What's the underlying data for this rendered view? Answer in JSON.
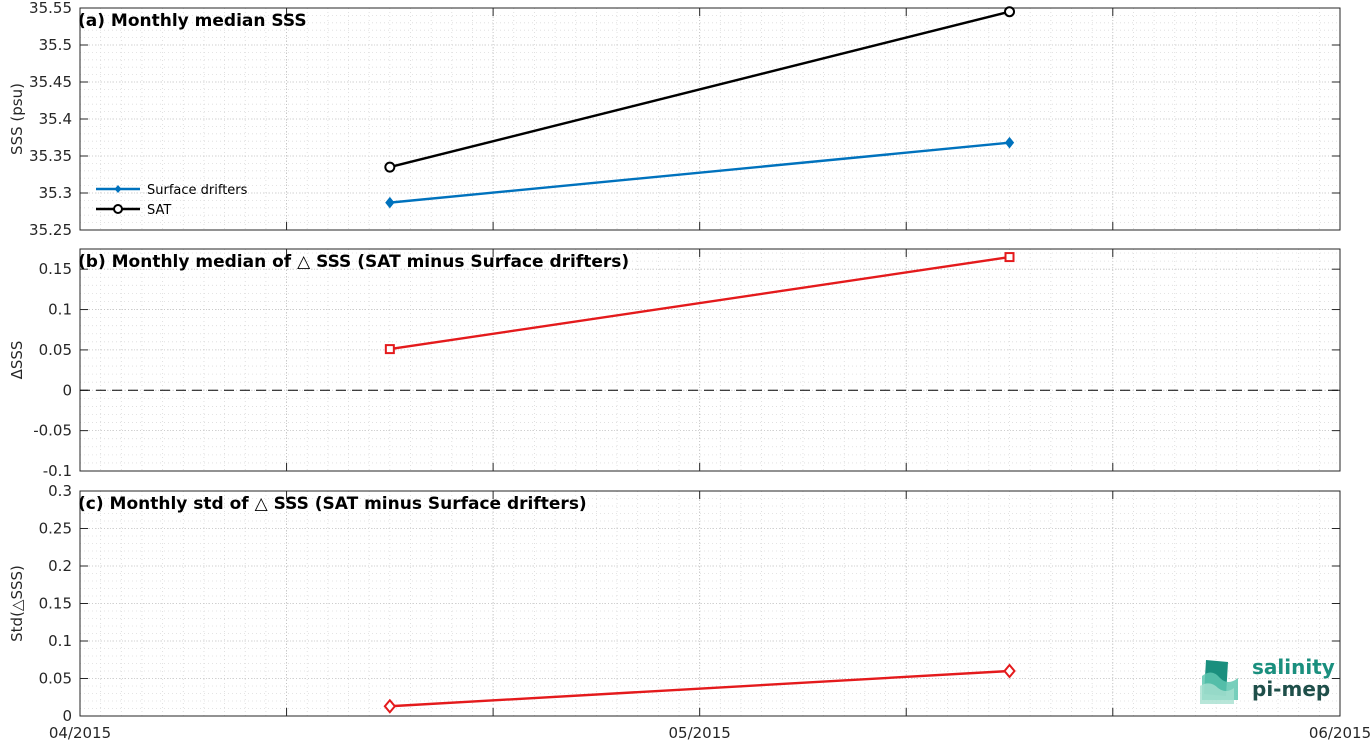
{
  "chart_data": [
    {
      "type": "line",
      "title": "(a) Monthly median SSS",
      "ylabel": "SSS (psu)",
      "xlim": [
        "2015-04-01",
        "2015-06-01"
      ],
      "ylim": [
        35.25,
        35.55
      ],
      "yticks": [
        35.25,
        35.3,
        35.35,
        35.4,
        35.45,
        35.5,
        35.55
      ],
      "ytick_labels": [
        "35.25",
        "35.3",
        "35.35",
        "35.4",
        "35.45",
        "35.5",
        "35.55"
      ],
      "grid": true,
      "legend_position": "bottom-left",
      "series": [
        {
          "name": "Surface drifters",
          "color": "#0072bd",
          "marker": "diamond-filled",
          "x": [
            "2015-04-16",
            "2015-05-16"
          ],
          "values": [
            35.287,
            35.368
          ]
        },
        {
          "name": "SAT",
          "color": "#000000",
          "marker": "circle-open",
          "x": [
            "2015-04-16",
            "2015-05-16"
          ],
          "values": [
            35.335,
            35.545
          ]
        }
      ]
    },
    {
      "type": "line",
      "title": "(b) Monthly median of △ SSS (SAT minus Surface drifters)",
      "ylabel": "ΔSSS",
      "xlim": [
        "2015-04-01",
        "2015-06-01"
      ],
      "ylim": [
        -0.1,
        0.175
      ],
      "yticks": [
        -0.1,
        -0.05,
        0,
        0.05,
        0.1,
        0.15
      ],
      "ytick_labels": [
        "-0.1",
        "-0.05",
        "0",
        "0.05",
        "0.1",
        "0.15"
      ],
      "grid": true,
      "reference_line": {
        "y": 0,
        "style": "dashed",
        "color": "#000000"
      },
      "series": [
        {
          "color": "#e41a1c",
          "marker": "square-open",
          "x": [
            "2015-04-16",
            "2015-05-16"
          ],
          "values": [
            0.051,
            0.165
          ]
        }
      ]
    },
    {
      "type": "line",
      "title": "(c) Monthly std of △ SSS (SAT minus Surface drifters)",
      "ylabel": "Std(△SSS)",
      "xlim": [
        "2015-04-01",
        "2015-06-01"
      ],
      "ylim": [
        0,
        0.3
      ],
      "yticks": [
        0,
        0.05,
        0.1,
        0.15,
        0.2,
        0.25,
        0.3
      ],
      "ytick_labels": [
        "0",
        "0.05",
        "0.1",
        "0.15",
        "0.2",
        "0.25",
        "0.3"
      ],
      "xtick_labels": [
        "04/2015",
        "05/2015",
        "06/2015"
      ],
      "grid": true,
      "series": [
        {
          "color": "#e41a1c",
          "marker": "diamond-open",
          "x": [
            "2015-04-16",
            "2015-05-16"
          ],
          "values": [
            0.013,
            0.06
          ]
        }
      ]
    }
  ],
  "logo": {
    "line1": "salinity",
    "line2": "pi-mep",
    "color": "#1a8f7e"
  }
}
